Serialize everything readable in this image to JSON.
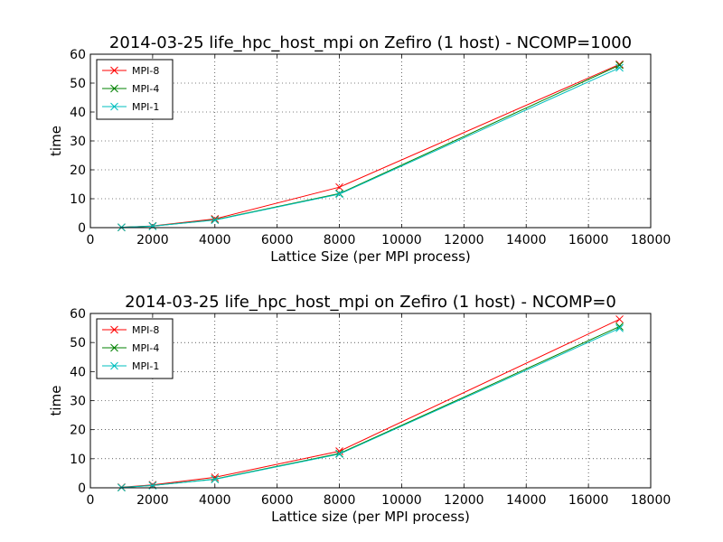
{
  "chart_data": [
    {
      "type": "line",
      "title": "2014-03-25 life_hpc_host_mpi on Zefiro (1 host) - NCOMP=1000",
      "xlabel": "Lattice Size (per MPI process)",
      "ylabel": "time",
      "xlim": [
        0,
        18000
      ],
      "ylim": [
        0,
        60
      ],
      "xticks": [
        0,
        2000,
        4000,
        6000,
        8000,
        10000,
        12000,
        14000,
        16000,
        18000
      ],
      "yticks": [
        0,
        10,
        20,
        30,
        40,
        50,
        60
      ],
      "grid": true,
      "legend_position": "top-left",
      "x": [
        1000,
        2000,
        4000,
        8000,
        17000
      ],
      "series": [
        {
          "name": "MPI-8",
          "color": "#ff0000",
          "marker": "x",
          "values": [
            0.1,
            0.6,
            3.0,
            14.0,
            56.5
          ]
        },
        {
          "name": "MPI-4",
          "color": "#008000",
          "marker": "x",
          "values": [
            0.1,
            0.5,
            2.7,
            11.8,
            56.2
          ]
        },
        {
          "name": "MPI-1",
          "color": "#00bfbf",
          "marker": "x",
          "values": [
            0.1,
            0.5,
            2.6,
            11.6,
            55.3
          ]
        }
      ]
    },
    {
      "type": "line",
      "title": "2014-03-25 life_hpc_host_mpi on Zefiro (1 host) - NCOMP=0",
      "xlabel": "Lattice size (per MPI process)",
      "ylabel": "time",
      "xlim": [
        0,
        18000
      ],
      "ylim": [
        0,
        60
      ],
      "xticks": [
        0,
        2000,
        4000,
        6000,
        8000,
        10000,
        12000,
        14000,
        16000,
        18000
      ],
      "yticks": [
        0,
        10,
        20,
        30,
        40,
        50,
        60
      ],
      "grid": true,
      "legend_position": "top-left",
      "x": [
        1000,
        2000,
        4000,
        8000,
        17000
      ],
      "series": [
        {
          "name": "MPI-8",
          "color": "#ff0000",
          "marker": "x",
          "values": [
            0.2,
            1.0,
            3.6,
            12.6,
            58.0
          ]
        },
        {
          "name": "MPI-4",
          "color": "#008000",
          "marker": "x",
          "values": [
            0.1,
            0.8,
            3.0,
            11.8,
            55.5
          ]
        },
        {
          "name": "MPI-1",
          "color": "#00bfbf",
          "marker": "x",
          "values": [
            0.1,
            0.8,
            2.9,
            11.6,
            54.9
          ]
        }
      ]
    }
  ]
}
